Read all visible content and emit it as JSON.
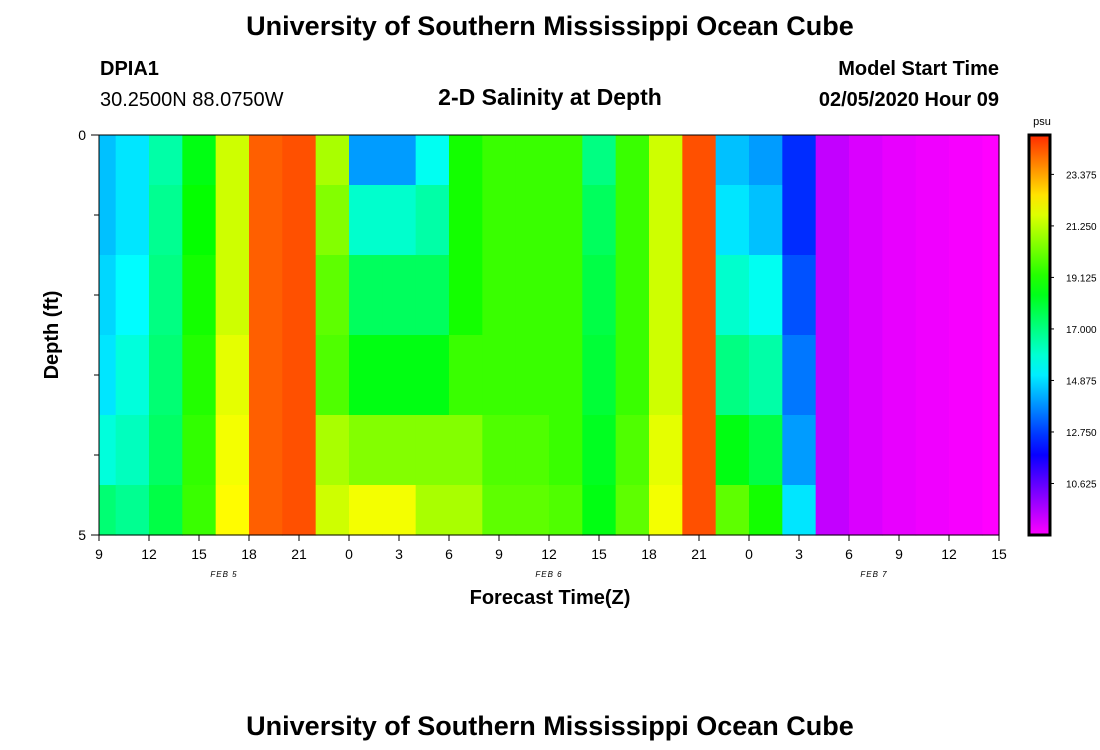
{
  "page": {
    "title": "University of Southern Mississippi Ocean Cube",
    "footer_title": "University of Southern Mississippi Ocean Cube"
  },
  "station": {
    "id": "DPIA1",
    "coords": "30.2500N 88.0750W"
  },
  "model": {
    "label": "Model Start Time",
    "start": "02/05/2020 Hour 09"
  },
  "chart_data": {
    "type": "heatmap",
    "title": "2-D Salinity at Depth",
    "xlabel": "Forecast Time(Z)",
    "ylabel": "Depth (ft)",
    "x_tick_labels": [
      "9",
      "12",
      "15",
      "18",
      "21",
      "0",
      "3",
      "6",
      "9",
      "12",
      "15",
      "18",
      "21",
      "0",
      "3",
      "6",
      "9",
      "12",
      "15"
    ],
    "x_tick_hours": [
      0,
      3,
      6,
      9,
      12,
      15,
      18,
      21,
      24,
      27,
      30,
      33,
      36,
      39,
      42,
      45,
      48,
      51,
      54
    ],
    "x_range_hours": [
      0,
      54
    ],
    "day_labels": [
      {
        "text": "FEB 5",
        "hour": 7.5
      },
      {
        "text": "FEB 6",
        "hour": 27
      },
      {
        "text": "FEB 7",
        "hour": 46.5
      }
    ],
    "y_tick_labels": [
      "0",
      "5"
    ],
    "y_range": [
      0,
      5
    ],
    "y_minor_ticks": [
      1,
      2,
      3,
      4
    ],
    "depth_layers": [
      0.25,
      1,
      2,
      3,
      4,
      4.75
    ],
    "colorbar": {
      "unit": "psu",
      "min": 8.5,
      "max": 25.0,
      "tick_values": [
        10.625,
        12.75,
        14.875,
        17.0,
        19.125,
        21.25,
        23.375
      ],
      "tick_labels": [
        "10.625",
        "12.750",
        "14.875",
        "17.000",
        "19.125",
        "21.250",
        "23.375"
      ]
    },
    "time_hours": [
      0,
      2,
      4,
      6,
      8,
      10,
      12,
      14,
      16,
      18,
      20,
      22,
      24,
      26,
      28,
      30,
      32,
      34,
      36,
      38,
      40,
      42,
      44,
      46,
      48,
      50,
      52,
      54
    ],
    "salinity_psu": [
      [
        14.5,
        15.0,
        16.5,
        18.5,
        21.5,
        24.3,
        24.5,
        21.0,
        14.0,
        14.0,
        15.5,
        19.0,
        19.5,
        19.5,
        19.5,
        17.0,
        19.5,
        21.5,
        24.5,
        14.5,
        14.0,
        12.5,
        9.3,
        9.0,
        8.8,
        8.7,
        8.6,
        8.5
      ],
      [
        14.5,
        15.0,
        16.8,
        18.8,
        21.5,
        24.3,
        24.5,
        20.5,
        16.0,
        16.0,
        16.5,
        19.0,
        19.5,
        19.5,
        19.5,
        17.5,
        19.5,
        21.5,
        24.5,
        15.0,
        14.5,
        12.5,
        9.3,
        9.0,
        8.8,
        8.7,
        8.6,
        8.5
      ],
      [
        14.8,
        15.3,
        17.0,
        19.0,
        21.5,
        24.3,
        24.5,
        20.0,
        17.5,
        17.5,
        17.5,
        19.0,
        19.5,
        19.5,
        19.5,
        17.8,
        19.5,
        21.5,
        24.5,
        16.0,
        15.5,
        13.0,
        9.3,
        9.0,
        8.8,
        8.7,
        8.6,
        8.5
      ],
      [
        15.0,
        15.8,
        17.2,
        19.2,
        21.8,
        24.3,
        24.5,
        19.8,
        18.5,
        18.5,
        18.5,
        19.5,
        19.5,
        19.5,
        19.5,
        18.0,
        19.5,
        21.5,
        24.5,
        17.0,
        16.5,
        13.5,
        9.3,
        9.0,
        8.8,
        8.7,
        8.6,
        8.5
      ],
      [
        15.8,
        16.2,
        17.4,
        19.4,
        22.0,
        24.3,
        24.5,
        21.0,
        20.5,
        20.5,
        20.5,
        20.5,
        19.8,
        19.8,
        19.5,
        18.3,
        19.8,
        21.8,
        24.5,
        18.5,
        17.8,
        14.0,
        9.3,
        9.0,
        8.8,
        8.7,
        8.6,
        8.5
      ],
      [
        17.2,
        16.8,
        17.8,
        19.5,
        22.2,
        24.3,
        24.5,
        21.5,
        22.0,
        22.0,
        21.0,
        21.0,
        20.0,
        20.0,
        19.8,
        18.5,
        20.0,
        22.0,
        24.5,
        20.0,
        19.0,
        15.0,
        9.3,
        9.0,
        8.8,
        8.7,
        8.6,
        8.5
      ]
    ]
  }
}
